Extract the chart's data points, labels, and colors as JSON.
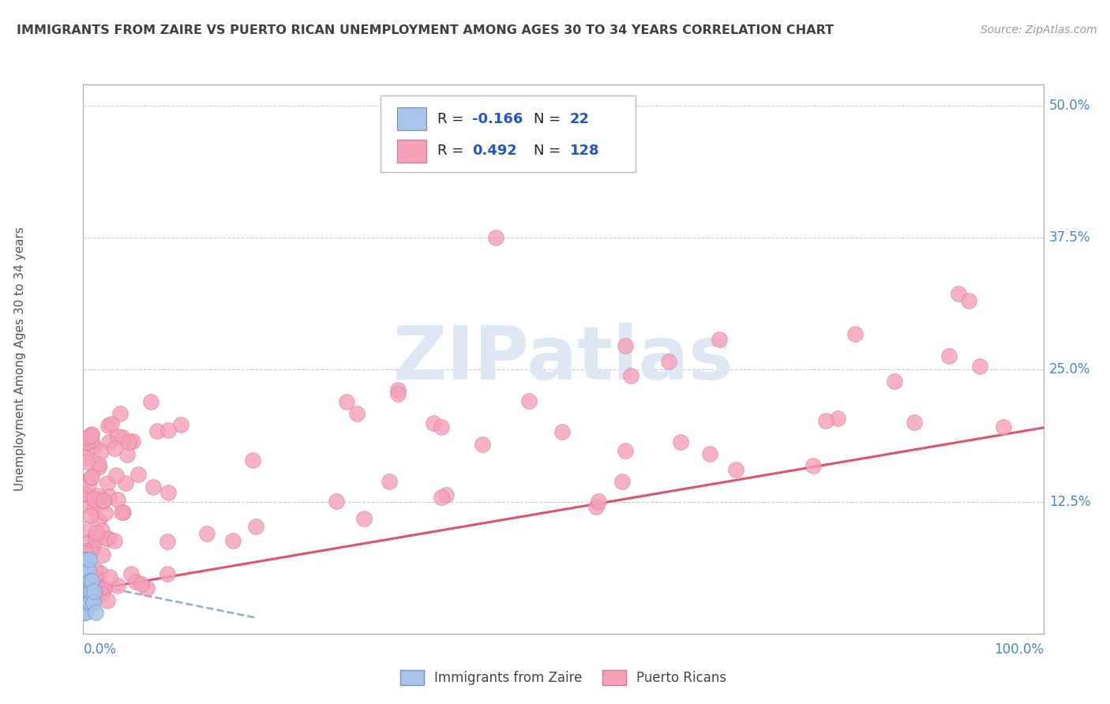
{
  "title": "IMMIGRANTS FROM ZAIRE VS PUERTO RICAN UNEMPLOYMENT AMONG AGES 30 TO 34 YEARS CORRELATION CHART",
  "source": "Source: ZipAtlas.com",
  "ylabel": "Unemployment Among Ages 30 to 34 years",
  "y_tick_positions": [
    0.125,
    0.25,
    0.375,
    0.5
  ],
  "y_tick_labels": [
    "12.5%",
    "25.0%",
    "37.5%",
    "50.0%"
  ],
  "xlim": [
    0.0,
    1.0
  ],
  "ylim": [
    0.0,
    0.52
  ],
  "blue_color": "#a8c4e8",
  "blue_edge": "#7090c8",
  "pink_color": "#f4a0b8",
  "pink_edge": "#e07090",
  "trend_blue_color": "#90aad0",
  "trend_pink_color": "#e05070",
  "title_color": "#404040",
  "axis_label_color": "#4488cc",
  "watermark_color": "#dde8f4",
  "legend_r1_val": "-0.166",
  "legend_n1_val": "22",
  "legend_r2_val": "0.492",
  "legend_n2_val": "128",
  "grid_color": "#cccccc"
}
